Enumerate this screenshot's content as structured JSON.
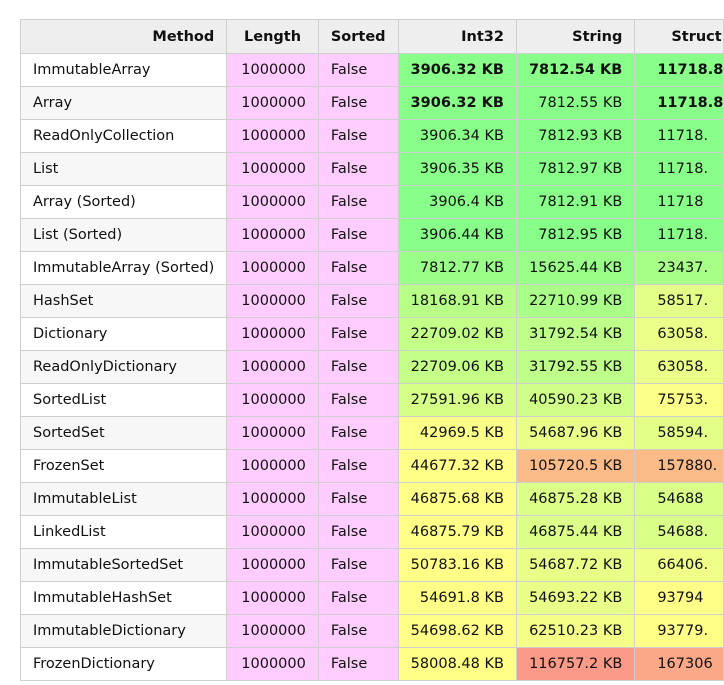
{
  "headers": {
    "method": "Method",
    "length": "Length",
    "sorted": "Sorted",
    "int32": "Int32",
    "string": "String",
    "struct": "Struct"
  },
  "rows": [
    {
      "method": "ImmutableArray",
      "length": "1000000",
      "sorted": "False",
      "int32": "3906.32 KB",
      "string": "7812.54 KB",
      "struct": "11718.8",
      "int32_color": "#88ff88",
      "string_color": "#88ff88",
      "struct_color": "#88ff88",
      "int32_bold": true,
      "string_bold": true,
      "struct_bold": true
    },
    {
      "method": "Array",
      "length": "1000000",
      "sorted": "False",
      "int32": "3906.32 KB",
      "string": "7812.55 KB",
      "struct": "11718.8",
      "int32_color": "#88ff88",
      "string_color": "#88ff88",
      "struct_color": "#88ff88",
      "int32_bold": true,
      "string_bold": false,
      "struct_bold": true
    },
    {
      "method": "ReadOnlyCollection",
      "length": "1000000",
      "sorted": "False",
      "int32": "3906.34 KB",
      "string": "7812.93 KB",
      "struct": "11718.",
      "int32_color": "#88ff88",
      "string_color": "#88ff88",
      "struct_color": "#88ff88"
    },
    {
      "method": "List",
      "length": "1000000",
      "sorted": "False",
      "int32": "3906.35 KB",
      "string": "7812.97 KB",
      "struct": "11718.",
      "int32_color": "#88ff88",
      "string_color": "#88ff88",
      "struct_color": "#88ff88"
    },
    {
      "method": "Array (Sorted)",
      "length": "1000000",
      "sorted": "False",
      "int32": "3906.4 KB",
      "string": "7812.91 KB",
      "struct": "11718",
      "int32_color": "#88ff88",
      "string_color": "#88ff88",
      "struct_color": "#88ff88"
    },
    {
      "method": "List (Sorted)",
      "length": "1000000",
      "sorted": "False",
      "int32": "3906.44 KB",
      "string": "7812.95 KB",
      "struct": "11718.",
      "int32_color": "#88ff88",
      "string_color": "#88ff88",
      "struct_color": "#88ff88"
    },
    {
      "method": "ImmutableArray (Sorted)",
      "length": "1000000",
      "sorted": "False",
      "int32": "7812.77 KB",
      "string": "15625.44 KB",
      "struct": "23437.",
      "int32_color": "#99ff88",
      "string_color": "#99ff88",
      "struct_color": "#a8ff88"
    },
    {
      "method": "HashSet",
      "length": "1000000",
      "sorted": "False",
      "int32": "18168.91 KB",
      "string": "22710.99 KB",
      "struct": "58517.",
      "int32_color": "#b8ff88",
      "string_color": "#aaff88",
      "struct_color": "#e4ff88"
    },
    {
      "method": "Dictionary",
      "length": "1000000",
      "sorted": "False",
      "int32": "22709.02 KB",
      "string": "31792.54 KB",
      "struct": "63058.",
      "int32_color": "#c4ff88",
      "string_color": "#bdff88",
      "struct_color": "#ecff88"
    },
    {
      "method": "ReadOnlyDictionary",
      "length": "1000000",
      "sorted": "False",
      "int32": "22709.06 KB",
      "string": "31792.55 KB",
      "struct": "63058.",
      "int32_color": "#c4ff88",
      "string_color": "#bdff88",
      "struct_color": "#ecff88"
    },
    {
      "method": "SortedList",
      "length": "1000000",
      "sorted": "False",
      "int32": "27591.96 KB",
      "string": "40590.23 KB",
      "struct": "75753.",
      "int32_color": "#d6ff88",
      "string_color": "#cfff88",
      "struct_color": "#fbff88"
    },
    {
      "method": "SortedSet",
      "length": "1000000",
      "sorted": "False",
      "int32": "42969.5 KB",
      "string": "54687.96 KB",
      "struct": "58594.",
      "int32_color": "#fbff88",
      "string_color": "#e8ff88",
      "struct_color": "#e4ff88"
    },
    {
      "method": "FrozenSet",
      "length": "1000000",
      "sorted": "False",
      "int32": "44677.32 KB",
      "string": "105720.5 KB",
      "struct": "157880.",
      "int32_color": "#ffff88",
      "string_color": "#fbbb88",
      "struct_color": "#fbbb88"
    },
    {
      "method": "ImmutableList",
      "length": "1000000",
      "sorted": "False",
      "int32": "46875.68 KB",
      "string": "46875.28 KB",
      "struct": "54688",
      "int32_color": "#ffff88",
      "string_color": "#dbff88",
      "struct_color": "#daff88"
    },
    {
      "method": "LinkedList",
      "length": "1000000",
      "sorted": "False",
      "int32": "46875.79 KB",
      "string": "46875.44 KB",
      "struct": "54688.",
      "int32_color": "#ffff88",
      "string_color": "#dbff88",
      "struct_color": "#daff88"
    },
    {
      "method": "ImmutableSortedSet",
      "length": "1000000",
      "sorted": "False",
      "int32": "50783.16 KB",
      "string": "54687.72 KB",
      "struct": "66406.",
      "int32_color": "#ffff88",
      "string_color": "#e8ff88",
      "struct_color": "#f0ff88"
    },
    {
      "method": "ImmutableHashSet",
      "length": "1000000",
      "sorted": "False",
      "int32": "54691.8 KB",
      "string": "54693.22 KB",
      "struct": "93794",
      "int32_color": "#ffff88",
      "string_color": "#e8ff88",
      "struct_color": "#ffff88"
    },
    {
      "method": "ImmutableDictionary",
      "length": "1000000",
      "sorted": "False",
      "int32": "54698.62 KB",
      "string": "62510.23 KB",
      "struct": "93779.",
      "int32_color": "#ffff88",
      "string_color": "#f4ff88",
      "struct_color": "#ffff88"
    },
    {
      "method": "FrozenDictionary",
      "length": "1000000",
      "sorted": "False",
      "int32": "58008.48 KB",
      "string": "116757.2 KB",
      "struct": "167306",
      "int32_color": "#ffff88",
      "string_color": "#fb9a88",
      "struct_color": "#fba888"
    }
  ]
}
